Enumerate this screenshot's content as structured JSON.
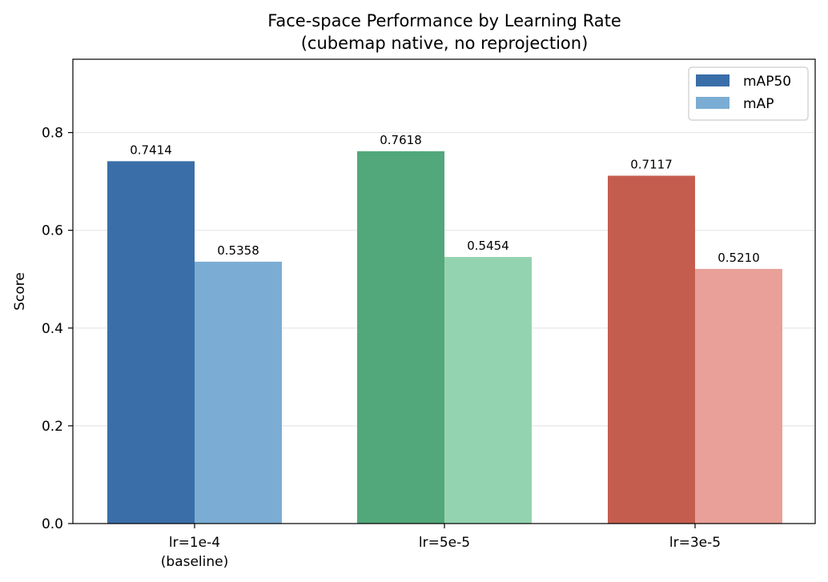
{
  "chart_data": {
    "type": "bar",
    "title": "Face-space Performance by Learning Rate",
    "subtitle": "(cubemap native, no reprojection)",
    "xlabel": "",
    "ylabel": "Score",
    "ylim": [
      0,
      0.95
    ],
    "yticks": [
      0.0,
      0.2,
      0.4,
      0.6,
      0.8
    ],
    "ytick_labels": [
      "0.0",
      "0.2",
      "0.4",
      "0.6",
      "0.8"
    ],
    "grid": "horizontal",
    "legend_position": "top-right",
    "categories": [
      {
        "line1": "lr=1e-4",
        "line2": "(baseline)"
      },
      {
        "line1": "lr=5e-5",
        "line2": ""
      },
      {
        "line1": "lr=3e-5",
        "line2": ""
      }
    ],
    "series": [
      {
        "name": "mAP50",
        "values": [
          0.7414,
          0.7618,
          0.7117
        ],
        "labels": [
          "0.7414",
          "0.7618",
          "0.7117"
        ],
        "colors": [
          "#3a6ea8",
          "#52a87a",
          "#c55d4f"
        ],
        "legend_color": "#3a6ea8"
      },
      {
        "name": "mAP",
        "values": [
          0.5358,
          0.5454,
          0.521
        ],
        "labels": [
          "0.5358",
          "0.5454",
          "0.5210"
        ],
        "colors": [
          "#7badd4",
          "#94d3b0",
          "#e8a098"
        ],
        "legend_color": "#7badd4"
      }
    ]
  }
}
